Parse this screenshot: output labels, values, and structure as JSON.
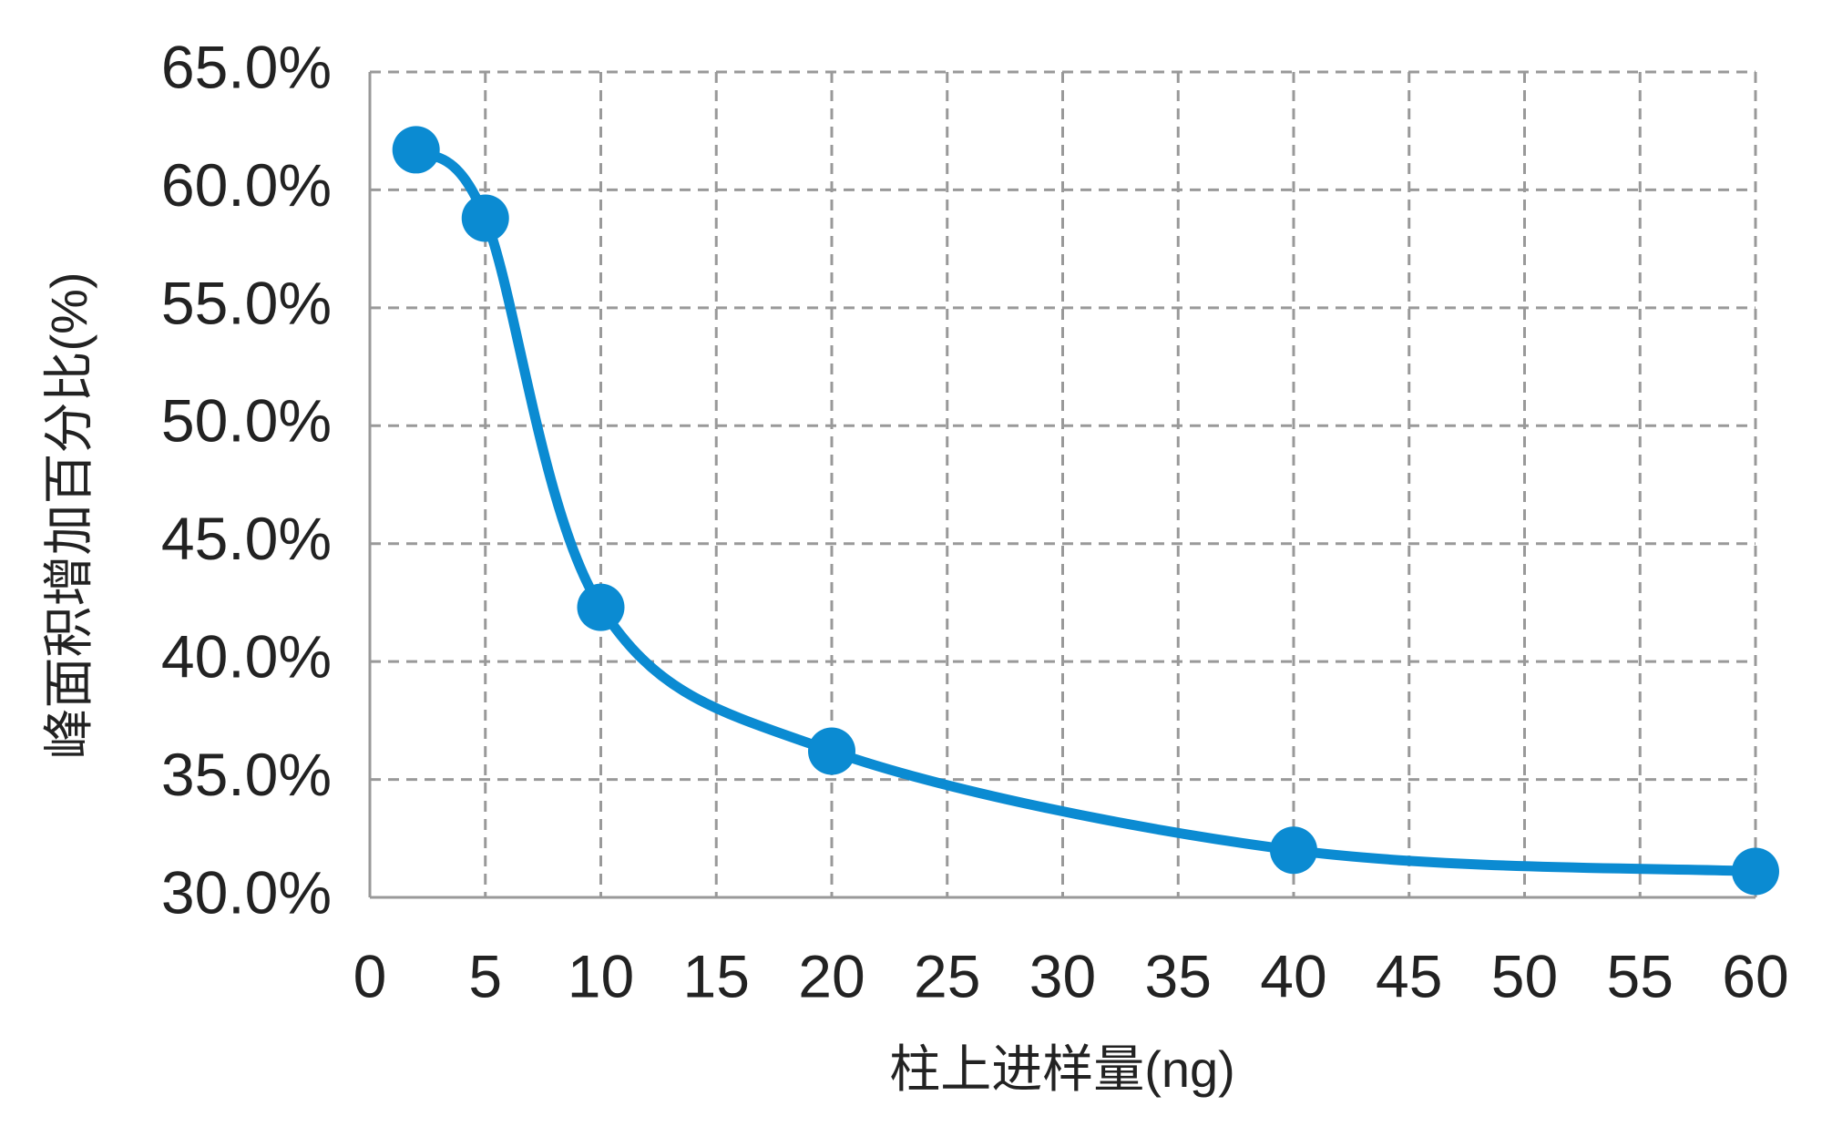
{
  "chart_data": {
    "type": "line",
    "x_label": "柱上进样量(ng)",
    "y_label": "峰面积增加百分比(%)",
    "x": [
      2,
      5,
      10,
      20,
      40,
      60
    ],
    "series": [
      {
        "color": "#0b8bd2",
        "values": [
          61.7,
          58.8,
          42.3,
          36.2,
          32.0,
          31.1
        ]
      }
    ],
    "xlim": [
      0,
      60
    ],
    "xticks": [
      0,
      5,
      10,
      15,
      20,
      25,
      30,
      35,
      40,
      45,
      50,
      55,
      60
    ],
    "ylim": [
      30,
      65
    ],
    "yticks": [
      {
        "value": 30,
        "label": "30.0%"
      },
      {
        "value": 35,
        "label": "35.0%"
      },
      {
        "value": 40,
        "label": "40.0%"
      },
      {
        "value": 45,
        "label": "45.0%"
      },
      {
        "value": 50,
        "label": "50.0%"
      },
      {
        "value": 55,
        "label": "55.0%"
      },
      {
        "value": 60,
        "label": "60.0%"
      },
      {
        "value": 65,
        "label": "65.0%"
      }
    ],
    "grid": true,
    "smooth": true
  }
}
